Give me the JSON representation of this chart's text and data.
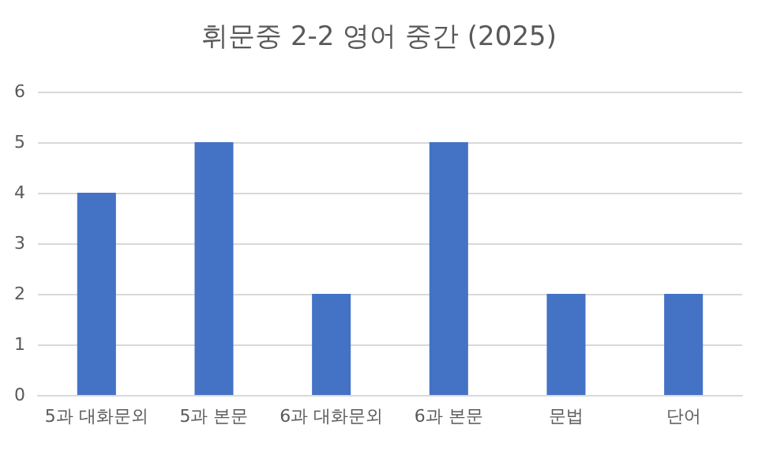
{
  "chart_data": {
    "type": "bar",
    "title": "휘문중 2-2 영어 중간 (2025)",
    "categories": [
      "5과 대화문외",
      "5과 본문",
      "6과 대화문외",
      "6과 본문",
      "문법",
      "단어"
    ],
    "values": [
      4,
      5,
      2,
      5,
      2,
      2
    ],
    "color": "#4472c4",
    "ylim": [
      0,
      6
    ],
    "yticks": [
      0,
      1,
      2,
      3,
      4,
      5,
      6
    ],
    "grid": true
  }
}
